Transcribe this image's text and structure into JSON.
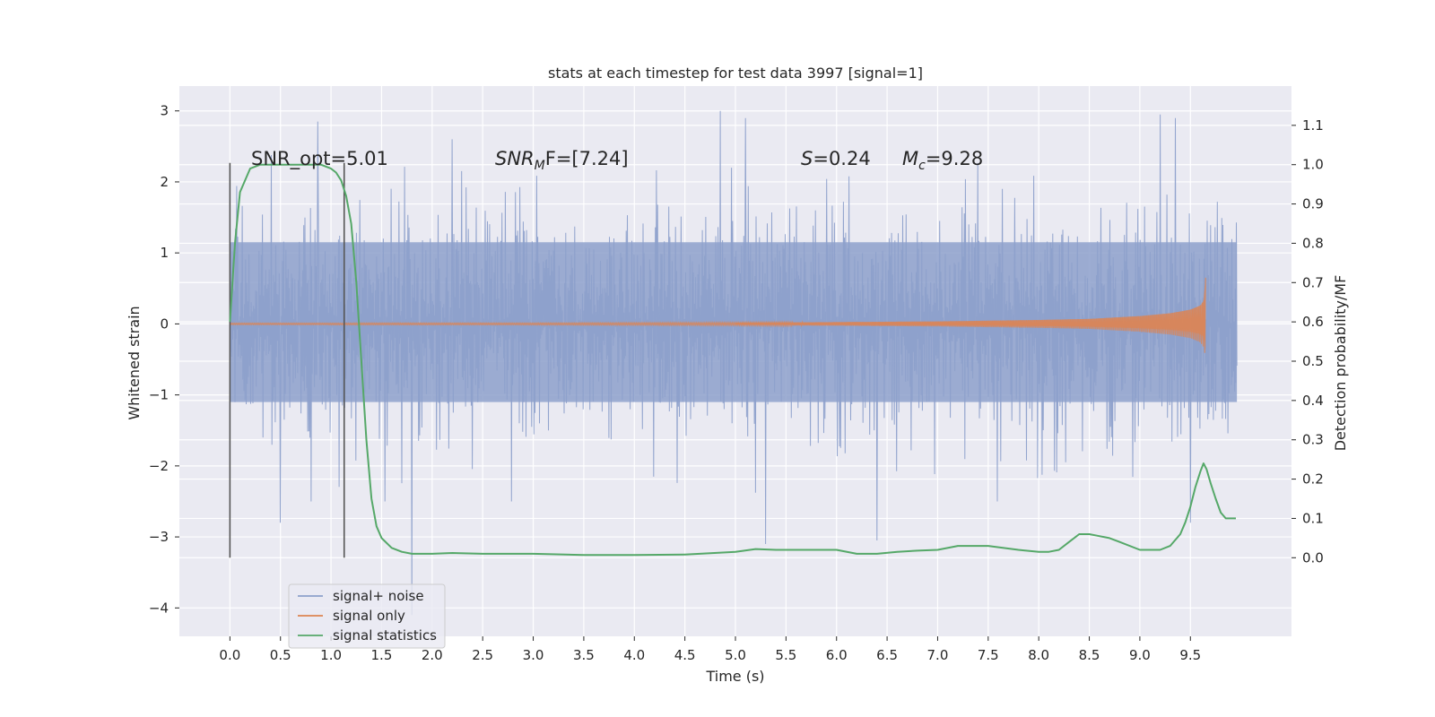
{
  "chart_data": {
    "type": "line",
    "title": "stats at each timestep for test data 3997 [signal=1]",
    "xlabel": "Time (s)",
    "ylabel": "Whitened strain",
    "ylabel_right": "Detection probability/MF",
    "x_ticks": [
      "0.0",
      "0.5",
      "1.0",
      "1.5",
      "2.0",
      "2.5",
      "3.0",
      "3.5",
      "4.0",
      "4.5",
      "5.0",
      "5.5",
      "6.0",
      "6.5",
      "7.0",
      "7.5",
      "8.0",
      "8.5",
      "9.0",
      "9.5"
    ],
    "y_ticks": [
      "3",
      "2",
      "1",
      "0",
      "−1",
      "−2",
      "−3",
      "−4"
    ],
    "y2_ticks": [
      "1.1",
      "1.0",
      "0.9",
      "0.8",
      "0.7",
      "0.6",
      "0.5",
      "0.4",
      "0.3",
      "0.2",
      "0.1",
      "0.0"
    ],
    "xlim": [
      -0.5,
      10.5
    ],
    "ylim": [
      -4.4,
      3.35
    ],
    "y2lim": [
      -0.2,
      1.2
    ],
    "grid": true,
    "legend_position": "lower-left",
    "annotations": {
      "snr_opt": "SNR_opt=5.01",
      "snr_mf_main": "SNR",
      "snr_mf_sub": "M",
      "snr_mf_rest": "F=[7.24]",
      "s_var": "S",
      "s_val": "=0.24",
      "mc_main": "M",
      "mc_sub": "c",
      "mc_val": "=9.28"
    },
    "vertical_lines_x": [
      0.0,
      1.13
    ],
    "series": [
      {
        "name": "signal+ noise",
        "color": "#8da0cb",
        "x_range": [
          0.0,
          9.96
        ],
        "typical_band": [
          -1.1,
          1.15
        ],
        "peak_times": [
          0.87,
          2.2,
          4.85,
          5.1,
          9.2,
          9.35
        ],
        "peak_values": [
          2.85,
          2.6,
          3.0,
          2.9,
          2.95,
          2.9
        ],
        "trough_times": [
          1.8,
          5.3,
          6.4,
          0.5,
          9.5
        ],
        "trough_values": [
          -4.1,
          -3.1,
          -3.05,
          -2.8,
          -2.8
        ]
      },
      {
        "name": "signal only",
        "color": "#dd8452",
        "x": [
          0.0,
          3.0,
          5.0,
          6.0,
          7.0,
          8.0,
          8.5,
          9.0,
          9.3,
          9.5,
          9.6,
          9.64,
          9.65
        ],
        "amplitude": [
          0.01,
          0.012,
          0.018,
          0.025,
          0.035,
          0.055,
          0.07,
          0.11,
          0.15,
          0.2,
          0.26,
          0.35,
          0.65
        ]
      },
      {
        "name": "signal statistics",
        "color": "#55a868",
        "x": [
          0.0,
          0.05,
          0.1,
          0.2,
          0.3,
          0.4,
          0.5,
          0.6,
          0.7,
          0.8,
          0.9,
          1.0,
          1.05,
          1.1,
          1.15,
          1.2,
          1.25,
          1.3,
          1.35,
          1.4,
          1.45,
          1.5,
          1.6,
          1.7,
          1.8,
          2.0,
          2.2,
          2.5,
          3.0,
          3.5,
          4.0,
          4.5,
          5.0,
          5.2,
          5.4,
          5.6,
          5.8,
          6.0,
          6.2,
          6.4,
          6.6,
          6.8,
          7.0,
          7.2,
          7.3,
          7.5,
          7.8,
          8.0,
          8.1,
          8.2,
          8.3,
          8.4,
          8.5,
          8.6,
          8.7,
          8.8,
          9.0,
          9.2,
          9.3,
          9.35,
          9.4,
          9.45,
          9.5,
          9.55,
          9.6,
          9.63,
          9.66,
          9.7,
          9.75,
          9.8,
          9.85,
          9.9,
          9.95
        ],
        "values": [
          0.6,
          0.8,
          0.93,
          0.99,
          1.0,
          1.0,
          1.0,
          1.0,
          1.0,
          1.0,
          1.0,
          0.99,
          0.98,
          0.96,
          0.92,
          0.85,
          0.7,
          0.5,
          0.3,
          0.15,
          0.08,
          0.05,
          0.025,
          0.015,
          0.01,
          0.01,
          0.012,
          0.01,
          0.01,
          0.007,
          0.007,
          0.008,
          0.015,
          0.022,
          0.02,
          0.02,
          0.02,
          0.02,
          0.01,
          0.01,
          0.015,
          0.018,
          0.02,
          0.03,
          0.03,
          0.03,
          0.02,
          0.015,
          0.015,
          0.02,
          0.04,
          0.06,
          0.06,
          0.055,
          0.05,
          0.04,
          0.02,
          0.02,
          0.03,
          0.045,
          0.06,
          0.09,
          0.13,
          0.18,
          0.22,
          0.24,
          0.225,
          0.19,
          0.15,
          0.115,
          0.1,
          0.1,
          0.1
        ]
      }
    ]
  }
}
